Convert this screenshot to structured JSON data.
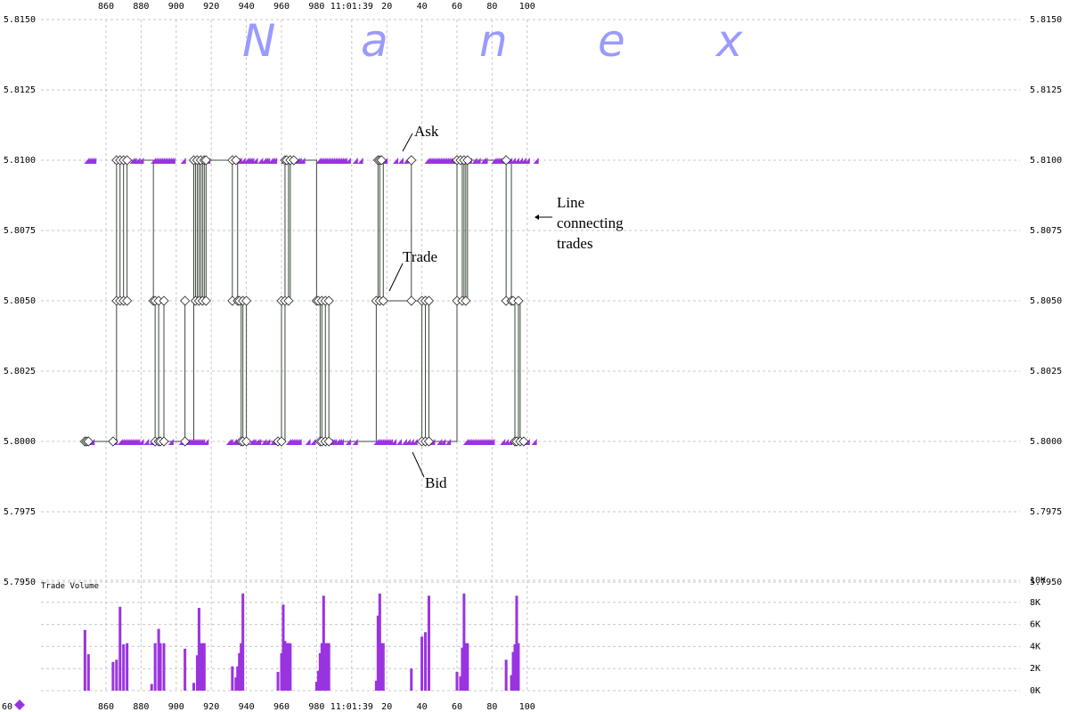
{
  "chart_data": [
    {
      "type": "line",
      "title": "",
      "watermark": [
        "N",
        "a",
        "n",
        "e",
        "x"
      ],
      "xlabel": "",
      "ylabel": "",
      "x_tick_labels": [
        "860",
        "880",
        "900",
        "920",
        "940",
        "960",
        "980",
        "11:01:39",
        "20",
        "40",
        "60",
        "80",
        "100"
      ],
      "y_tick_labels": [
        "5.8150",
        "5.8125",
        "5.8100",
        "5.8075",
        "5.8050",
        "5.8025",
        "5.8000",
        "5.7975",
        "5.7950"
      ],
      "ylim": [
        5.795,
        5.815
      ],
      "xlim": [
        846,
        1106
      ],
      "grid": true,
      "annotations": [
        {
          "text": "Ask"
        },
        {
          "text": "Trade"
        },
        {
          "text": "Line"
        },
        {
          "text": "connecting"
        },
        {
          "text": "trades"
        },
        {
          "text": "Bid"
        }
      ],
      "ask_price": 5.81,
      "bid_price": 5.8,
      "ask_quote_times": [
        849,
        850,
        851,
        852,
        853,
        866,
        870,
        875,
        876,
        878,
        880,
        887,
        888,
        889,
        890,
        891,
        892,
        893,
        894,
        895,
        896,
        897,
        898,
        904,
        910,
        913,
        916,
        918,
        933,
        935,
        936,
        938,
        940,
        941,
        942,
        943,
        945,
        948,
        950,
        951,
        952,
        954,
        955,
        956,
        961,
        962,
        963,
        965,
        967,
        969,
        970,
        972,
        981,
        982,
        983,
        984,
        985,
        986,
        987,
        988,
        989,
        990,
        991,
        992,
        993,
        994,
        995,
        996,
        998,
        1002,
        1005,
        1016,
        1019,
        1025,
        1028,
        1031,
        1043,
        1044,
        1045,
        1046,
        1047,
        1048,
        1049,
        1050,
        1051,
        1052,
        1053,
        1054,
        1055,
        1056,
        1057,
        1058,
        1064,
        1065,
        1066,
        1067,
        1070,
        1072,
        1075,
        1076,
        1081,
        1082,
        1083,
        1084,
        1085,
        1086,
        1088,
        1090,
        1092,
        1094,
        1096,
        1098,
        1100,
        1105
      ],
      "bid_quote_times": [
        852,
        865,
        868,
        869,
        870,
        871,
        872,
        873,
        874,
        875,
        876,
        877,
        878,
        880,
        883,
        886,
        888,
        892,
        897,
        903,
        906,
        907,
        908,
        909,
        910,
        911,
        912,
        913,
        914,
        915,
        917,
        930,
        931,
        933,
        934,
        935,
        936,
        940,
        943,
        944,
        946,
        947,
        950,
        952,
        955,
        957,
        958,
        964,
        965,
        966,
        967,
        968,
        969,
        970,
        975,
        978,
        984,
        985,
        986,
        987,
        988,
        989,
        990,
        992,
        993,
        994,
        998,
        1002,
        1014,
        1015,
        1016,
        1017,
        1018,
        1019,
        1020,
        1021,
        1022,
        1024,
        1027,
        1030,
        1032,
        1034,
        1036,
        1042,
        1044,
        1046,
        1050,
        1052,
        1055,
        1065,
        1066,
        1067,
        1068,
        1069,
        1070,
        1071,
        1072,
        1073,
        1074,
        1075,
        1076,
        1077,
        1078,
        1079,
        1080,
        1086,
        1088,
        1090,
        1095,
        1100,
        1104
      ],
      "trades": [
        {
          "t": 848,
          "p": 5.8
        },
        {
          "t": 849,
          "p": 5.8
        },
        {
          "t": 850,
          "p": 5.8
        },
        {
          "t": 864,
          "p": 5.8
        },
        {
          "t": 866,
          "p": 5.805
        },
        {
          "t": 866,
          "p": 5.81
        },
        {
          "t": 868,
          "p": 5.805
        },
        {
          "t": 868,
          "p": 5.81
        },
        {
          "t": 870,
          "p": 5.805
        },
        {
          "t": 870,
          "p": 5.81
        },
        {
          "t": 872,
          "p": 5.805
        },
        {
          "t": 872,
          "p": 5.81
        },
        {
          "t": 887,
          "p": 5.805
        },
        {
          "t": 888,
          "p": 5.805
        },
        {
          "t": 888,
          "p": 5.8
        },
        {
          "t": 890,
          "p": 5.805
        },
        {
          "t": 890,
          "p": 5.8
        },
        {
          "t": 891,
          "p": 5.8
        },
        {
          "t": 893,
          "p": 5.805
        },
        {
          "t": 893,
          "p": 5.8
        },
        {
          "t": 905,
          "p": 5.805
        },
        {
          "t": 905,
          "p": 5.8
        },
        {
          "t": 910,
          "p": 5.81
        },
        {
          "t": 911,
          "p": 5.805
        },
        {
          "t": 912,
          "p": 5.81
        },
        {
          "t": 913,
          "p": 5.805
        },
        {
          "t": 914,
          "p": 5.81
        },
        {
          "t": 915,
          "p": 5.805
        },
        {
          "t": 916,
          "p": 5.81
        },
        {
          "t": 917,
          "p": 5.805
        },
        {
          "t": 917,
          "p": 5.81
        },
        {
          "t": 932,
          "p": 5.805
        },
        {
          "t": 932,
          "p": 5.81
        },
        {
          "t": 934,
          "p": 5.81
        },
        {
          "t": 935,
          "p": 5.805
        },
        {
          "t": 936,
          "p": 5.805
        },
        {
          "t": 937,
          "p": 5.8
        },
        {
          "t": 938,
          "p": 5.805
        },
        {
          "t": 938,
          "p": 5.8
        },
        {
          "t": 940,
          "p": 5.805
        },
        {
          "t": 940,
          "p": 5.8
        },
        {
          "t": 958,
          "p": 5.8
        },
        {
          "t": 960,
          "p": 5.805
        },
        {
          "t": 960,
          "p": 5.8
        },
        {
          "t": 962,
          "p": 5.805
        },
        {
          "t": 962,
          "p": 5.81
        },
        {
          "t": 963,
          "p": 5.81
        },
        {
          "t": 964,
          "p": 5.805
        },
        {
          "t": 965,
          "p": 5.81
        },
        {
          "t": 967,
          "p": 5.81
        },
        {
          "t": 980,
          "p": 5.805
        },
        {
          "t": 981,
          "p": 5.805
        },
        {
          "t": 982,
          "p": 5.8
        },
        {
          "t": 983,
          "p": 5.805
        },
        {
          "t": 983,
          "p": 5.8
        },
        {
          "t": 985,
          "p": 5.805
        },
        {
          "t": 985,
          "p": 5.8
        },
        {
          "t": 987,
          "p": 5.805
        },
        {
          "t": 987,
          "p": 5.8
        },
        {
          "t": 1014,
          "p": 5.805
        },
        {
          "t": 1015,
          "p": 5.81
        },
        {
          "t": 1016,
          "p": 5.805
        },
        {
          "t": 1016,
          "p": 5.81
        },
        {
          "t": 1017,
          "p": 5.81
        },
        {
          "t": 1018,
          "p": 5.805
        },
        {
          "t": 1034,
          "p": 5.81
        },
        {
          "t": 1034,
          "p": 5.805
        },
        {
          "t": 1040,
          "p": 5.805
        },
        {
          "t": 1040,
          "p": 5.8
        },
        {
          "t": 1042,
          "p": 5.8
        },
        {
          "t": 1042,
          "p": 5.805
        },
        {
          "t": 1044,
          "p": 5.805
        },
        {
          "t": 1044,
          "p": 5.8
        },
        {
          "t": 1060,
          "p": 5.805
        },
        {
          "t": 1060,
          "p": 5.81
        },
        {
          "t": 1062,
          "p": 5.81
        },
        {
          "t": 1063,
          "p": 5.805
        },
        {
          "t": 1064,
          "p": 5.81
        },
        {
          "t": 1065,
          "p": 5.805
        },
        {
          "t": 1066,
          "p": 5.81
        },
        {
          "t": 1088,
          "p": 5.805
        },
        {
          "t": 1088,
          "p": 5.81
        },
        {
          "t": 1091,
          "p": 5.805
        },
        {
          "t": 1092,
          "p": 5.805
        },
        {
          "t": 1093,
          "p": 5.8
        },
        {
          "t": 1094,
          "p": 5.8
        },
        {
          "t": 1095,
          "p": 5.805
        },
        {
          "t": 1096,
          "p": 5.8
        },
        {
          "t": 1098,
          "p": 5.8
        }
      ]
    },
    {
      "type": "bar",
      "title": "Trade Volume",
      "ylim": [
        0,
        10000
      ],
      "y_tick_labels": [
        "10K",
        "8K",
        "6K",
        "4K",
        "2K",
        "0K"
      ],
      "x_tick_labels": [
        "860",
        "880",
        "900",
        "920",
        "940",
        "960",
        "980",
        "11:01:39",
        "20",
        "40",
        "60",
        "80",
        "100"
      ],
      "legend_marker_label": "60",
      "grid": true,
      "times": [
        848,
        850,
        864,
        866,
        868,
        870,
        872,
        886,
        888,
        890,
        891,
        893,
        905,
        910,
        912,
        913,
        914,
        915,
        916,
        932,
        934,
        935,
        936,
        937,
        938,
        958,
        960,
        961,
        962,
        963,
        964,
        965,
        980,
        981,
        982,
        983,
        984,
        985,
        986,
        987,
        1014,
        1015,
        1016,
        1017,
        1018,
        1034,
        1040,
        1042,
        1044,
        1060,
        1062,
        1063,
        1064,
        1065,
        1066,
        1088,
        1091,
        1092,
        1093,
        1094,
        1095
      ],
      "values": [
        5500,
        3300,
        2600,
        2800,
        7600,
        4200,
        4300,
        600,
        4300,
        5600,
        4300,
        4300,
        3800,
        700,
        3200,
        7500,
        4300,
        4300,
        4300,
        2200,
        1200,
        2200,
        3400,
        4300,
        8800,
        1700,
        3400,
        7800,
        4500,
        4300,
        4300,
        4300,
        800,
        1800,
        3400,
        4300,
        8600,
        4300,
        4300,
        4300,
        900,
        6800,
        8800,
        4300,
        4300,
        2000,
        4900,
        5300,
        8600,
        1700,
        1300,
        3900,
        8800,
        4300,
        4300,
        2800,
        1400,
        3500,
        4200,
        8600,
        4300
      ]
    }
  ]
}
